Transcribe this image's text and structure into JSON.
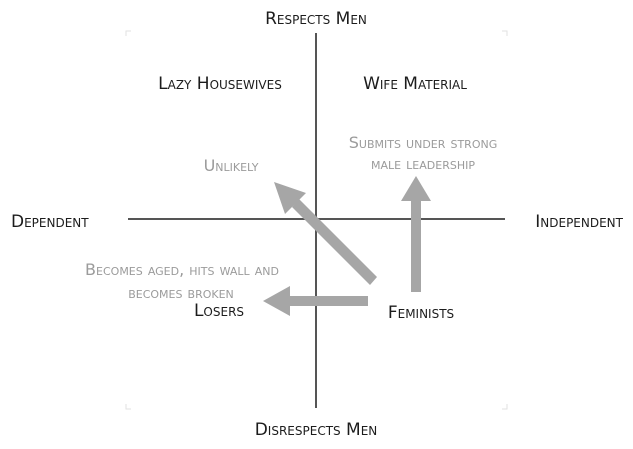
{
  "axes": {
    "top": "Respects Men",
    "bottom": "Disrespects Men",
    "left": "Dependent",
    "right": "Independent"
  },
  "quadrants": {
    "top_left": "Lazy Housewives",
    "top_right": "Wife Material",
    "bottom_left": "Losers",
    "bottom_right": "Feminists"
  },
  "annotations": {
    "up_line1": "Submits under strong",
    "up_line2": "male leadership",
    "diagonal": "Unlikely",
    "left_line1": "Becomes aged, hits wall and",
    "left_line2": "becomes broken"
  },
  "colors": {
    "axis": "#555555",
    "arrow": "#a6a6a6",
    "text_dark": "#1c1c1c",
    "text_gray": "#9b9b9b",
    "frame": "#e2e2e2"
  }
}
